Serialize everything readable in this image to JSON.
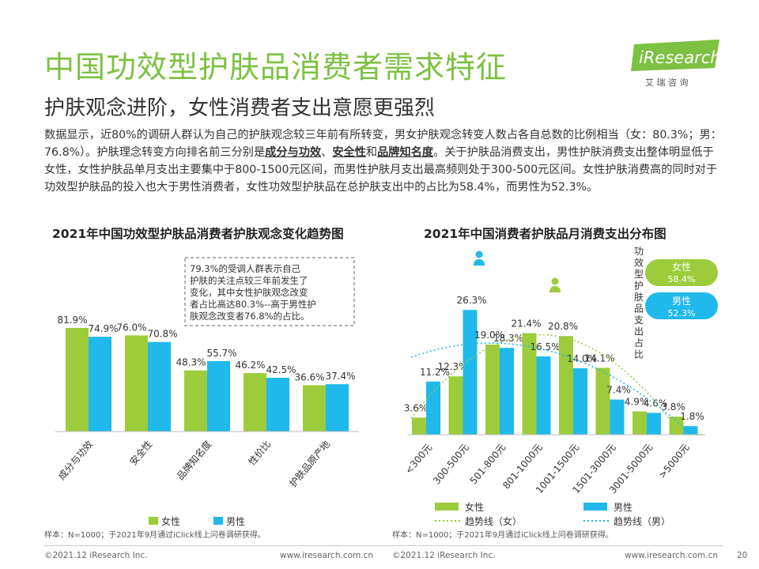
{
  "page": {
    "title": "中国功效型护肤品消费者需求特征",
    "subtitle": "护肤观念进阶，女性消费者支出意愿更强烈",
    "body": {
      "p1": "数据显示，近80%的调研人群认为自己的护肤观念较三年前有所转变，男女护肤观念转变人数占各自总数的比例相当（女：80.3%；男：76.8%）。护肤理念转变方向排名前三分别是",
      "k1": "成分与功效",
      "sep1": "、",
      "k2": "安全性",
      "sep2": "和",
      "k3": "品牌知名度",
      "p2": "。关于护肤品消费支出，男性护肤消费支出整体明显低于女性，女性护肤品单月支出主要集中于800-1500元区间，而男性护肤月支出最高频则处于300-500元区间。女性护肤消费高的同时对于功效型护肤品的投入也大于男性消费者，女性功效型护肤品在总护肤支出中的占比为58.4%，而男性为52.3%。"
    },
    "logo": {
      "brand": "iResearch",
      "sub": "艾 瑞 咨 询"
    },
    "footer": {
      "left_copyright": "©2021.12 iResearch Inc.",
      "left_site": "www.iresearch.com.cn",
      "right_copyright": "©2021.12 iResearch Inc.",
      "right_site": "www.iresearch.com.cn",
      "page_number": "20"
    },
    "colors": {
      "green": "#9ccc3c",
      "blue": "#1fb9ec",
      "title_green": "#7cc142"
    }
  },
  "chart_data": [
    {
      "type": "bar",
      "title": "2021年中国功效型护肤品消费者护肤观念变化趋势图",
      "categories": [
        "成分与功效",
        "安全性",
        "品牌知名度",
        "性价比",
        "护肤品原产地"
      ],
      "series": [
        {
          "name": "女性",
          "values": [
            81.9,
            76.0,
            48.3,
            46.2,
            36.6
          ],
          "labels": [
            "81.9%",
            "76.0%",
            "48.3%",
            "46.2%",
            "36.6%"
          ]
        },
        {
          "name": "男性",
          "values": [
            74.9,
            70.8,
            55.7,
            42.5,
            37.4
          ],
          "labels": [
            "74.9%",
            "70.8%",
            "55.7%",
            "42.5%",
            "37.4%"
          ]
        }
      ],
      "ylim": [
        0,
        100
      ],
      "grid": false,
      "legend": "bottom",
      "annotation": "79.3%的受调人群表示自己护肤的关注点较三年前发生了变化，其中女性护肤观念改变者占比高达80.3%--高于男性护肤观念改变者76.8%的占比。",
      "note": "样本：N=1000；于2021年9月通过iClick线上问卷调研获得。"
    },
    {
      "type": "bar",
      "title": "2021年中国消费者护肤品月消费支出分布图",
      "categories": [
        "<300元",
        "300-500元",
        "501-800元",
        "801-1000元",
        "1001-1500元",
        "1501-3000元",
        "3001-5000元",
        ">5000元"
      ],
      "series": [
        {
          "name": "女性",
          "values": [
            3.6,
            12.3,
            19.0,
            21.4,
            20.8,
            14.1,
            4.9,
            3.8
          ],
          "labels": [
            "3.6%",
            "12.3%",
            "19.0%",
            "21.4%",
            "20.8%",
            "14.1%",
            "4.9%",
            "3.8%"
          ]
        },
        {
          "name": "男性",
          "values": [
            11.2,
            26.3,
            18.3,
            16.5,
            14.0,
            7.4,
            4.6,
            1.8
          ],
          "labels": [
            "11.2%",
            "26.3%",
            "18.3%",
            "16.5%",
            "14.0%",
            "7.4%",
            "4.6%",
            "1.8%"
          ]
        }
      ],
      "trendlines": [
        {
          "name": "趋势线（女）",
          "series": "女性",
          "style": "dotted"
        },
        {
          "name": "趋势线（男）",
          "series": "男性",
          "style": "dotted"
        }
      ],
      "ylim": [
        0,
        30
      ],
      "grid": false,
      "legend": "bottom",
      "side_title": "功效型护肤品支出占比",
      "side_badges": [
        {
          "name": "女性",
          "value": "58.4%"
        },
        {
          "name": "男性",
          "value": "52.3%"
        }
      ],
      "note": "样本：N=1000；于2021年9月通过iClick线上问卷调研获得。"
    }
  ]
}
